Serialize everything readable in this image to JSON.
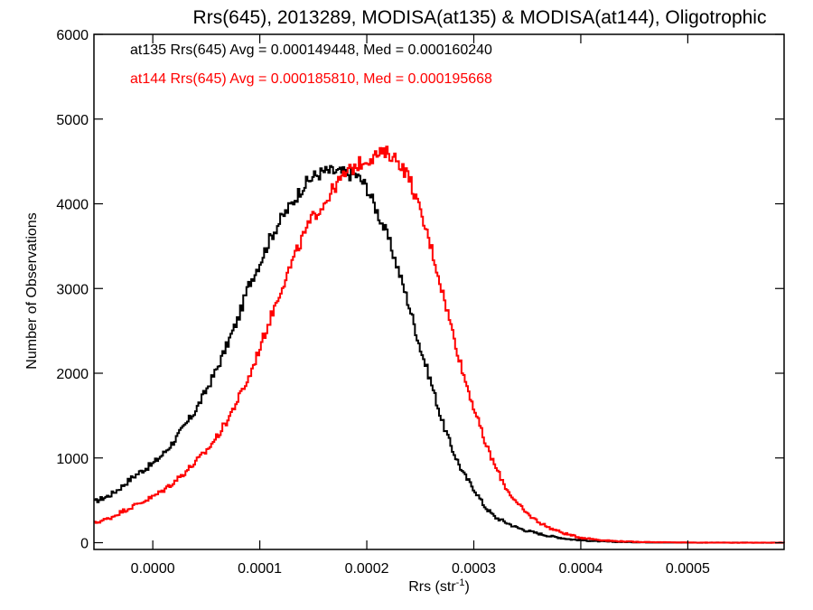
{
  "chart_data": {
    "type": "line",
    "title": "Rrs(645), 2013289, MODISA(at135) & MODISA(at144), Oligotrophic",
    "xlabel_main": "Rrs (str",
    "xlabel_sup": "-1",
    "xlabel_close": ")",
    "ylabel": "Number of Observations",
    "xlim": [
      -5.5e-05,
      0.00059
    ],
    "ylim": [
      -80,
      6000
    ],
    "x_ticks": [
      0.0,
      0.0001,
      0.0002,
      0.0003,
      0.0004,
      0.0005
    ],
    "x_tick_labels": [
      "0.0000",
      "0.0001",
      "0.0002",
      "0.0003",
      "0.0004",
      "0.0005"
    ],
    "y_ticks": [
      0,
      1000,
      2000,
      3000,
      4000,
      5000,
      6000
    ],
    "y_tick_labels": [
      "0",
      "1000",
      "2000",
      "3000",
      "4000",
      "5000",
      "6000"
    ],
    "grid": false,
    "legend": {
      "placement": "top-left"
    },
    "annotations": [
      {
        "text": "at135 Rrs(645) Avg = 0.000149448, Med = 0.000160240",
        "color": "#000000"
      },
      {
        "text": "at144 Rrs(645) Avg = 0.000185810, Med = 0.000195668",
        "color": "#ff0000"
      }
    ],
    "step_x_spacing": "curve sampled at the listed x values, drawn as histogram steps",
    "series": [
      {
        "color": "#000000",
        "x": [
          -5.5e-05,
          -4e-05,
          -3e-05,
          -2e-05,
          -1e-05,
          0.0,
          1e-05,
          2e-05,
          3e-05,
          4e-05,
          5e-05,
          6e-05,
          7e-05,
          8e-05,
          9e-05,
          0.0001,
          0.00011,
          0.00012,
          0.00013,
          0.00014,
          0.00015,
          0.00016,
          0.00017,
          0.00018,
          0.00019,
          0.0002,
          0.00021,
          0.00022,
          0.00023,
          0.00024,
          0.00025,
          0.00026,
          0.00027,
          0.00028,
          0.00029,
          0.0003,
          0.00031,
          0.00032,
          0.00033,
          0.00034,
          0.00035,
          0.00036,
          0.00037,
          0.00038,
          0.00039,
          0.0004,
          0.00041,
          0.00042,
          0.00043,
          0.00044,
          0.00045,
          0.00046,
          0.00047,
          0.00048,
          0.00049,
          0.0005,
          0.00051,
          0.00052,
          0.00053,
          0.00054,
          0.00055,
          0.00056,
          0.00057,
          0.00058,
          0.00059
        ],
        "values": [
          480,
          560,
          650,
          760,
          850,
          930,
          1050,
          1200,
          1380,
          1560,
          1800,
          2050,
          2350,
          2650,
          3050,
          3300,
          3600,
          3820,
          4000,
          4200,
          4320,
          4380,
          4380,
          4360,
          4340,
          4200,
          3900,
          3600,
          3200,
          2780,
          2300,
          1900,
          1450,
          1100,
          820,
          640,
          430,
          300,
          240,
          180,
          140,
          110,
          80,
          60,
          40,
          30,
          20,
          15,
          10,
          8,
          5,
          4,
          3,
          2,
          1,
          1,
          0,
          0,
          0,
          0,
          0,
          0,
          0,
          0,
          0
        ]
      },
      {
        "color": "#ff0000",
        "x": [
          -5.5e-05,
          -4e-05,
          -3e-05,
          -2e-05,
          -1e-05,
          0.0,
          1e-05,
          2e-05,
          3e-05,
          4e-05,
          5e-05,
          6e-05,
          7e-05,
          8e-05,
          9e-05,
          0.0001,
          0.00011,
          0.00012,
          0.00013,
          0.00014,
          0.00015,
          0.00016,
          0.00017,
          0.00018,
          0.00019,
          0.0002,
          0.00021,
          0.00022,
          0.00023,
          0.00024,
          0.00025,
          0.00026,
          0.00027,
          0.00028,
          0.00029,
          0.0003,
          0.00031,
          0.00032,
          0.00033,
          0.00034,
          0.00035,
          0.00036,
          0.00037,
          0.00038,
          0.00039,
          0.0004,
          0.00041,
          0.00042,
          0.00043,
          0.00044,
          0.00045,
          0.00046,
          0.00047,
          0.00048,
          0.00049,
          0.0005,
          0.00051,
          0.00052,
          0.00053,
          0.00054,
          0.00055,
          0.00056,
          0.00057,
          0.00058,
          0.00059
        ],
        "values": [
          230,
          290,
          360,
          420,
          480,
          540,
          620,
          720,
          830,
          950,
          1080,
          1250,
          1450,
          1700,
          1950,
          2300,
          2650,
          3000,
          3300,
          3600,
          3850,
          4000,
          4200,
          4350,
          4450,
          4520,
          4580,
          4600,
          4500,
          4300,
          3900,
          3500,
          3000,
          2500,
          2000,
          1600,
          1200,
          900,
          650,
          470,
          340,
          250,
          180,
          130,
          90,
          60,
          45,
          30,
          20,
          15,
          10,
          8,
          6,
          4,
          3,
          2,
          1,
          1,
          1,
          0,
          0,
          0,
          0,
          0,
          0
        ]
      }
    ]
  }
}
